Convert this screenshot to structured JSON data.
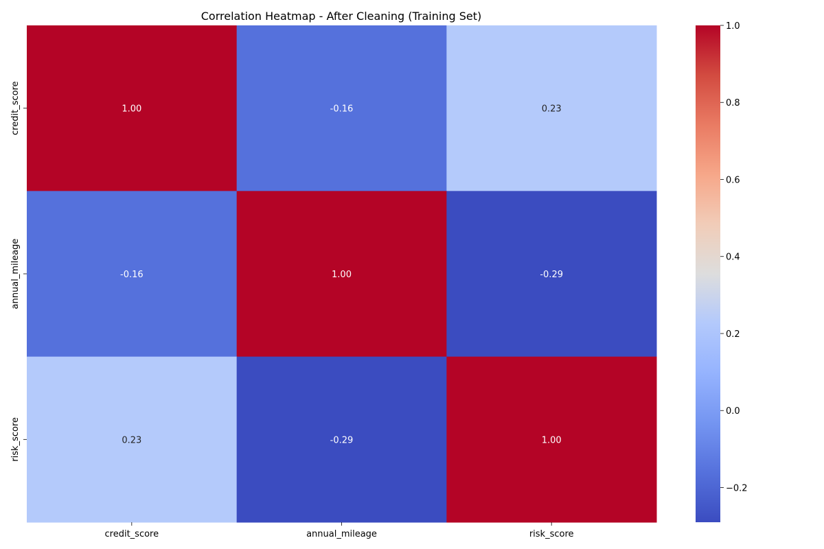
{
  "chart_data": {
    "type": "heatmap",
    "title": "Correlation Heatmap - After Cleaning (Training Set)",
    "x_labels": [
      "credit_score",
      "annual_mileage",
      "risk_score"
    ],
    "y_labels": [
      "credit_score",
      "annual_mileage",
      "risk_score"
    ],
    "values": [
      [
        1.0,
        -0.16,
        0.23
      ],
      [
        -0.16,
        1.0,
        -0.29
      ],
      [
        0.23,
        -0.29,
        1.0
      ]
    ],
    "cell_labels": [
      [
        "1.00",
        "-0.16",
        "0.23"
      ],
      [
        "-0.16",
        "1.00",
        "-0.29"
      ],
      [
        "0.23",
        "-0.29",
        "1.00"
      ]
    ],
    "colormap": "coolwarm",
    "vmin": -0.29,
    "vmax": 1.0,
    "colorbar_ticks": [
      -0.2,
      0.0,
      0.2,
      0.4,
      0.6,
      0.8,
      1.0
    ],
    "colorbar_tick_labels": [
      "−0.2",
      "0.0",
      "0.2",
      "0.4",
      "0.6",
      "0.8",
      "1.0"
    ],
    "grid": false,
    "legend": "colorbar-right"
  }
}
